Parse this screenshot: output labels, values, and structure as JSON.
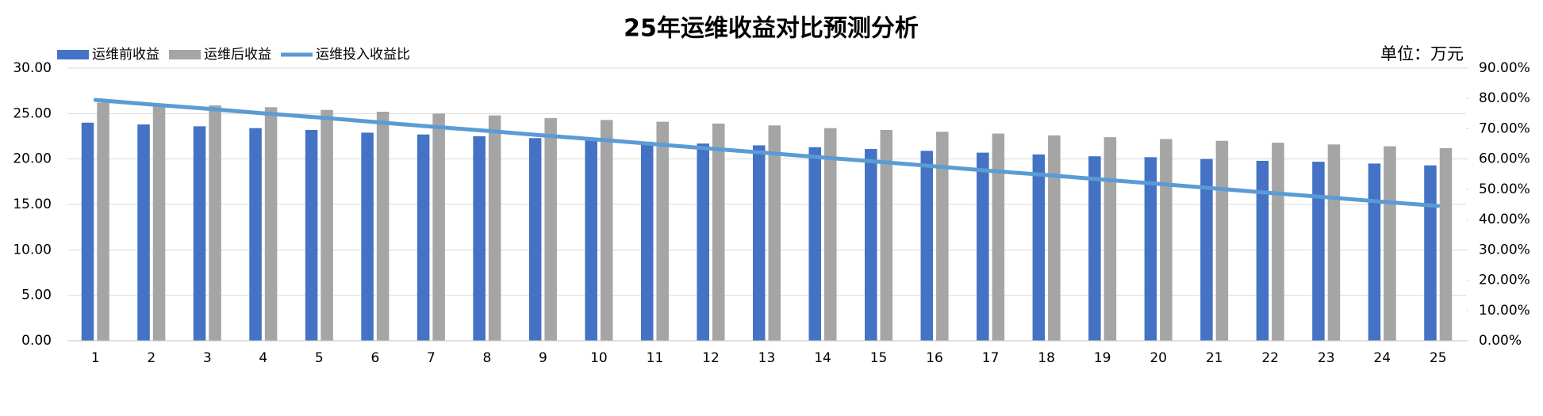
{
  "chart_data": {
    "type": "bar_line",
    "title": "25年运维收益对比预测分析",
    "annotation": "单位：万元",
    "categories": [
      "1",
      "2",
      "3",
      "4",
      "5",
      "6",
      "7",
      "8",
      "9",
      "10",
      "11",
      "12",
      "13",
      "14",
      "15",
      "16",
      "17",
      "18",
      "19",
      "20",
      "21",
      "22",
      "23",
      "24",
      "25"
    ],
    "series": [
      {
        "name": "运维前收益",
        "type": "bar",
        "color": "#4472c4",
        "values": [
          24.0,
          23.8,
          23.6,
          23.4,
          23.2,
          22.9,
          22.7,
          22.5,
          22.3,
          22.1,
          21.9,
          21.7,
          21.5,
          21.3,
          21.1,
          20.9,
          20.7,
          20.5,
          20.3,
          20.2,
          20.0,
          19.8,
          19.7,
          19.5,
          19.3
        ]
      },
      {
        "name": "运维后收益",
        "type": "bar",
        "color": "#a5a5a5",
        "values": [
          26.2,
          26.0,
          25.9,
          25.7,
          25.4,
          25.2,
          25.0,
          24.8,
          24.5,
          24.3,
          24.1,
          23.9,
          23.7,
          23.4,
          23.2,
          23.0,
          22.8,
          22.6,
          22.4,
          22.2,
          22.0,
          21.8,
          21.6,
          21.4,
          21.2
        ]
      },
      {
        "name": "运维投入收益比",
        "type": "line",
        "axis": "y2",
        "color": "#5b9bd5",
        "values": [
          79.5,
          78.0,
          76.6,
          75.1,
          73.7,
          72.2,
          70.7,
          69.3,
          67.8,
          66.4,
          64.9,
          63.4,
          62.0,
          60.5,
          59.1,
          57.6,
          56.1,
          54.7,
          53.2,
          51.8,
          50.3,
          48.8,
          47.4,
          45.9,
          44.5
        ]
      }
    ],
    "ylim": [
      0,
      30
    ],
    "yticks": [
      {
        "value": 0,
        "label": "0.00"
      },
      {
        "value": 5,
        "label": "5.00"
      },
      {
        "value": 10,
        "label": "10.00"
      },
      {
        "value": 15,
        "label": "15.00"
      },
      {
        "value": 20,
        "label": "20.00"
      },
      {
        "value": 25,
        "label": "25.00"
      },
      {
        "value": 30,
        "label": "30.00"
      }
    ],
    "y2lim": [
      0,
      90
    ],
    "y2ticks": [
      {
        "value": 0,
        "label": "0.00%"
      },
      {
        "value": 10,
        "label": "10.00%"
      },
      {
        "value": 20,
        "label": "20.00%"
      },
      {
        "value": 30,
        "label": "30.00%"
      },
      {
        "value": 40,
        "label": "40.00%"
      },
      {
        "value": 50,
        "label": "50.00%"
      },
      {
        "value": 60,
        "label": "60.00%"
      },
      {
        "value": 70,
        "label": "70.00%"
      },
      {
        "value": 80,
        "label": "80.00%"
      },
      {
        "value": 90,
        "label": "90.00%"
      }
    ],
    "grid": true,
    "legend": "top-left"
  }
}
